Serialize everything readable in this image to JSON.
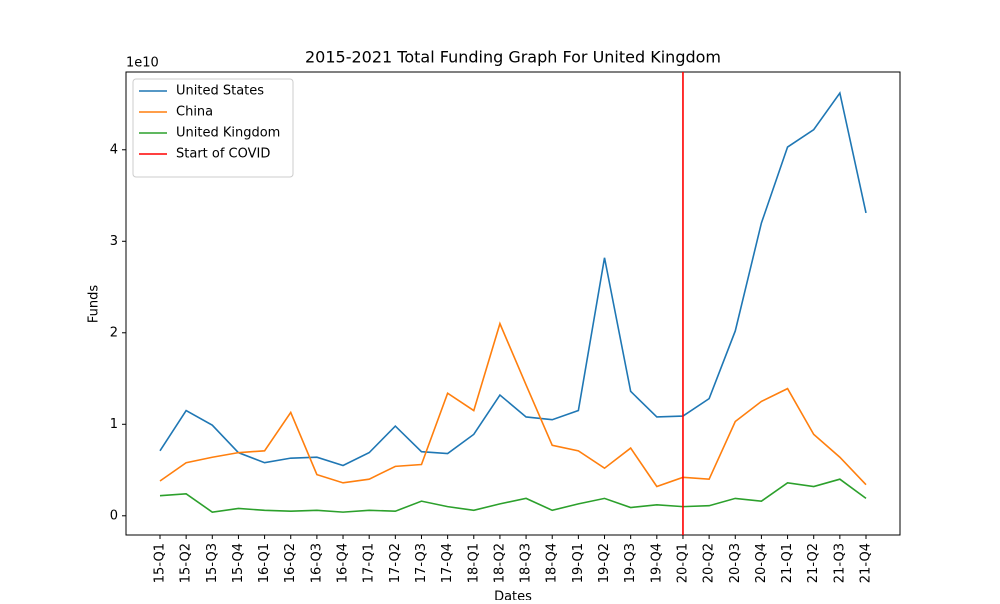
{
  "chart_data": {
    "type": "line",
    "title": "2015-2021 Total Funding Graph For United Kingdom",
    "x_label": "Dates",
    "y_label": "Funds",
    "y_offset_label": "1e10",
    "categories": [
      "15-Q1",
      "15-Q2",
      "15-Q3",
      "15-Q4",
      "16-Q1",
      "16-Q2",
      "16-Q3",
      "16-Q4",
      "17-Q1",
      "17-Q2",
      "17-Q3",
      "17-Q4",
      "18-Q1",
      "18-Q2",
      "18-Q3",
      "18-Q4",
      "19-Q1",
      "19-Q2",
      "19-Q3",
      "19-Q4",
      "20-Q1",
      "20-Q2",
      "20-Q3",
      "20-Q4",
      "21-Q1",
      "21-Q2",
      "21-Q3",
      "21-Q4"
    ],
    "series": [
      {
        "name": "United States",
        "color": "#1f77b4",
        "values": [
          0.71,
          1.15,
          0.99,
          0.69,
          0.58,
          0.63,
          0.64,
          0.55,
          0.69,
          0.98,
          0.7,
          0.68,
          0.89,
          1.32,
          1.08,
          1.05,
          1.15,
          2.82,
          1.36,
          1.08,
          1.09,
          1.28,
          2.02,
          3.2,
          4.03,
          4.22,
          4.62,
          3.31
        ]
      },
      {
        "name": "China",
        "color": "#ff7f0e",
        "values": [
          0.38,
          0.58,
          0.64,
          0.69,
          0.71,
          1.13,
          0.45,
          0.36,
          0.4,
          0.54,
          0.56,
          1.34,
          1.15,
          2.1,
          1.43,
          0.77,
          0.71,
          0.52,
          0.74,
          0.32,
          0.42,
          0.4,
          1.03,
          1.25,
          1.39,
          0.89,
          0.64,
          0.34
        ]
      },
      {
        "name": "United Kingdom",
        "color": "#2ca02c",
        "values": [
          0.22,
          0.24,
          0.04,
          0.08,
          0.06,
          0.05,
          0.06,
          0.04,
          0.06,
          0.05,
          0.16,
          0.1,
          0.06,
          0.13,
          0.19,
          0.06,
          0.13,
          0.19,
          0.09,
          0.12,
          0.1,
          0.11,
          0.19,
          0.16,
          0.36,
          0.32,
          0.4,
          0.19
        ]
      }
    ],
    "vertical_marker": {
      "name": "Start of COVID",
      "color": "#ff0000",
      "category": "20-Q1"
    },
    "ylim": [
      -0.21,
      4.85
    ],
    "yticks": [
      0,
      1,
      2,
      3,
      4
    ],
    "legend": "upper left"
  }
}
